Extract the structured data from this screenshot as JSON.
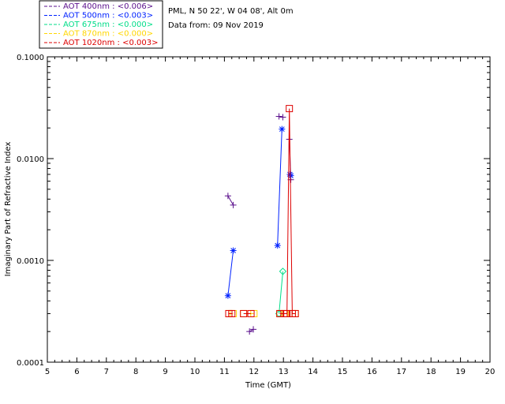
{
  "header": {
    "site": "PML, N 50 22', W 04 08', Alt 0m",
    "date": "Data from: 09 Nov 2019"
  },
  "chart_data": {
    "type": "line",
    "title": "",
    "xlabel": "Time (GMT)",
    "ylabel": "Imaginary Part of Refractive Index",
    "xlim": [
      5,
      20
    ],
    "ylim": [
      0.0001,
      0.1
    ],
    "yscale": "log",
    "xticks": [
      "5",
      "6",
      "7",
      "8",
      "9",
      "10",
      "11",
      "12",
      "13",
      "14",
      "15",
      "16",
      "17",
      "18",
      "19",
      "20"
    ],
    "yticks": [
      "0.0001",
      "0.0010",
      "0.0100",
      "0.1000"
    ],
    "grid": false,
    "legend_position": "top-left outside",
    "series": [
      {
        "name": "AOT  400nm : <0.006>",
        "color": "#5a0f8c",
        "marker": "plus",
        "segments": [
          [
            [
              11.12,
              0.0043
            ],
            [
              11.3,
              0.0035
            ]
          ],
          [
            [
              11.85,
              0.0002
            ],
            [
              11.98,
              0.00021
            ]
          ],
          [
            [
              12.85,
              0.026
            ],
            [
              12.98,
              0.0255
            ]
          ],
          [
            [
              13.2,
              0.0155
            ],
            [
              13.25,
              0.0062
            ]
          ]
        ]
      },
      {
        "name": "AOT  500nm : <0.003>",
        "color": "#0022ff",
        "marker": "star",
        "segments": [
          [
            [
              11.12,
              0.00045
            ],
            [
              11.3,
              0.00125
            ]
          ],
          [
            [
              12.8,
              0.0014
            ],
            [
              12.95,
              0.0195
            ]
          ],
          [
            [
              13.22,
              0.007
            ],
            [
              13.25,
              0.0068
            ]
          ]
        ]
      },
      {
        "name": "AOT  675nm : <0.000>",
        "color": "#00dd88",
        "marker": "diamond",
        "segments": [
          [
            [
              12.85,
              0.0003
            ],
            [
              12.98,
              0.00078
            ]
          ]
        ]
      },
      {
        "name": "AOT  870nm : <0.000>",
        "color": "#ffd700",
        "marker": "square",
        "segments": [
          [
            [
              11.15,
              0.0003
            ],
            [
              11.3,
              0.0003
            ]
          ],
          [
            [
              11.65,
              0.0003
            ],
            [
              12.0,
              0.0003
            ]
          ],
          [
            [
              12.88,
              0.0003
            ],
            [
              13.05,
              0.0003
            ]
          ],
          [
            [
              13.3,
              0.0003
            ],
            [
              13.4,
              0.0003
            ]
          ]
        ]
      },
      {
        "name": "AOT 1020nm : <0.003>",
        "color": "#dd0000",
        "marker": "square",
        "segments": [
          [
            [
              11.15,
              0.0003
            ],
            [
              11.25,
              0.0003
            ]
          ],
          [
            [
              11.65,
              0.0003
            ],
            [
              11.9,
              0.0003
            ]
          ],
          [
            [
              12.88,
              0.0003
            ],
            [
              13.02,
              0.0003
            ],
            [
              13.12,
              0.0003
            ],
            [
              13.2,
              0.031
            ],
            [
              13.3,
              0.0003
            ],
            [
              13.4,
              0.0003
            ]
          ]
        ]
      }
    ]
  }
}
